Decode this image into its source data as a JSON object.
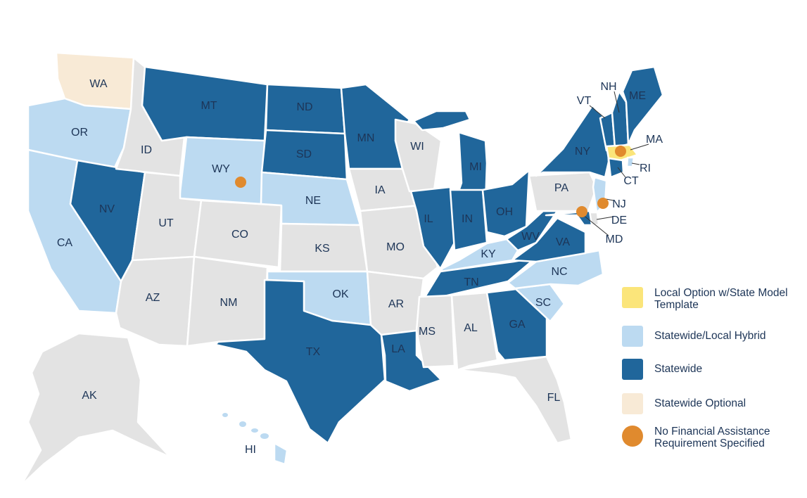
{
  "colors": {
    "local_option": "#fbe57a",
    "hybrid": "#bcdaf1",
    "statewide": "#20669b",
    "optional": "#f8ead6",
    "none": "#e3e3e3",
    "no_financial": "#e08a2e"
  },
  "states": {
    "WA": {
      "label": "WA",
      "category": "optional"
    },
    "OR": {
      "label": "OR",
      "category": "hybrid"
    },
    "CA": {
      "label": "CA",
      "category": "hybrid"
    },
    "NV": {
      "label": "NV",
      "category": "statewide"
    },
    "ID": {
      "label": "ID",
      "category": "none"
    },
    "MT": {
      "label": "MT",
      "category": "statewide"
    },
    "WY": {
      "label": "WY",
      "category": "hybrid",
      "no_financial": true
    },
    "UT": {
      "label": "UT",
      "category": "none"
    },
    "CO": {
      "label": "CO",
      "category": "none"
    },
    "AZ": {
      "label": "AZ",
      "category": "none"
    },
    "NM": {
      "label": "NM",
      "category": "none"
    },
    "ND": {
      "label": "ND",
      "category": "statewide"
    },
    "SD": {
      "label": "SD",
      "category": "statewide"
    },
    "NE": {
      "label": "NE",
      "category": "hybrid"
    },
    "KS": {
      "label": "KS",
      "category": "none"
    },
    "OK": {
      "label": "OK",
      "category": "hybrid"
    },
    "TX": {
      "label": "TX",
      "category": "statewide"
    },
    "MN": {
      "label": "MN",
      "category": "statewide"
    },
    "IA": {
      "label": "IA",
      "category": "none"
    },
    "MO": {
      "label": "MO",
      "category": "none"
    },
    "AR": {
      "label": "AR",
      "category": "none"
    },
    "LA": {
      "label": "LA",
      "category": "statewide"
    },
    "WI": {
      "label": "WI",
      "category": "none"
    },
    "IL": {
      "label": "IL",
      "category": "statewide"
    },
    "MI": {
      "label": "MI",
      "category": "statewide"
    },
    "IN": {
      "label": "IN",
      "category": "statewide"
    },
    "OH": {
      "label": "OH",
      "category": "statewide"
    },
    "KY": {
      "label": "KY",
      "category": "hybrid"
    },
    "TN": {
      "label": "TN",
      "category": "statewide"
    },
    "MS": {
      "label": "MS",
      "category": "none"
    },
    "AL": {
      "label": "AL",
      "category": "none"
    },
    "GA": {
      "label": "GA",
      "category": "statewide"
    },
    "FL": {
      "label": "FL",
      "category": "none"
    },
    "SC": {
      "label": "SC",
      "category": "hybrid"
    },
    "NC": {
      "label": "NC",
      "category": "hybrid"
    },
    "VA": {
      "label": "VA",
      "category": "statewide"
    },
    "WV": {
      "label": "WV",
      "category": "statewide"
    },
    "PA": {
      "label": "PA",
      "category": "none"
    },
    "NY": {
      "label": "NY",
      "category": "statewide"
    },
    "VT": {
      "label": "VT",
      "category": "statewide"
    },
    "NH": {
      "label": "NH",
      "category": "statewide"
    },
    "ME": {
      "label": "ME",
      "category": "statewide"
    },
    "MA": {
      "label": "MA",
      "category": "local_option",
      "no_financial": true
    },
    "CT": {
      "label": "CT",
      "category": "statewide"
    },
    "RI": {
      "label": "RI",
      "category": "hybrid"
    },
    "NJ": {
      "label": "NJ",
      "category": "hybrid",
      "no_financial": true
    },
    "DE": {
      "label": "DE",
      "category": "none"
    },
    "MD": {
      "label": "MD",
      "category": "statewide",
      "no_financial": true
    },
    "AK": {
      "label": "AK",
      "category": "none"
    },
    "HI": {
      "label": "HI",
      "category": "hybrid"
    }
  },
  "legend": [
    {
      "key": "local_option",
      "label": "Local Option w/State Model Template"
    },
    {
      "key": "hybrid",
      "label": "Statewide/Local Hybrid"
    },
    {
      "key": "statewide",
      "label": "Statewide"
    },
    {
      "key": "optional",
      "label": "Statewide Optional"
    },
    {
      "key": "no_financial",
      "label": "No Financial Assistance Requirement Specified"
    }
  ]
}
